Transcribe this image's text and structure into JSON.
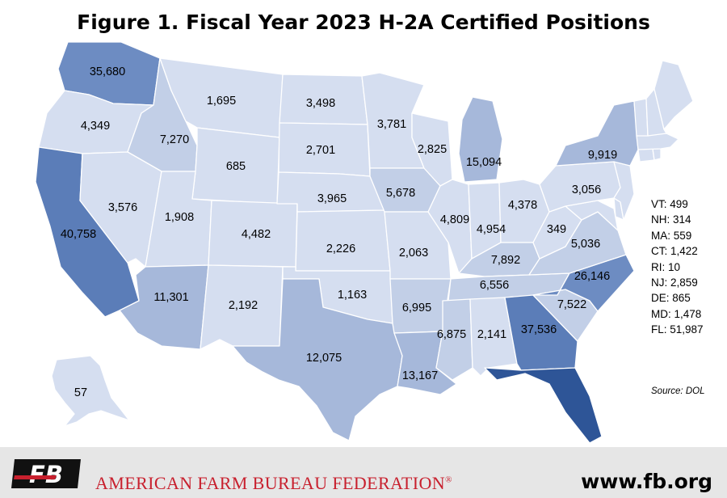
{
  "title": "Figure 1. Fiscal Year 2023 H-2A Certified Positions",
  "colors": {
    "lightest": "#d5def0",
    "light": "#c2cfe7",
    "medium": "#a6b8da",
    "dark": "#6d8cc2",
    "darker": "#5b7db8",
    "darkest": "#2e5597",
    "border": "#ffffff"
  },
  "states": [
    {
      "id": "WA",
      "value": "35,680"
    },
    {
      "id": "OR",
      "value": "4,349"
    },
    {
      "id": "CA",
      "value": "40,758"
    },
    {
      "id": "ID",
      "value": "7,270"
    },
    {
      "id": "NV",
      "value": "3,576"
    },
    {
      "id": "MT",
      "value": "1,695"
    },
    {
      "id": "WY",
      "value": "685"
    },
    {
      "id": "UT",
      "value": "1,908"
    },
    {
      "id": "AZ",
      "value": "11,301"
    },
    {
      "id": "CO",
      "value": "4,482"
    },
    {
      "id": "NM",
      "value": "2,192"
    },
    {
      "id": "ND",
      "value": "3,498"
    },
    {
      "id": "SD",
      "value": "2,701"
    },
    {
      "id": "NE",
      "value": "3,965"
    },
    {
      "id": "KS",
      "value": "2,226"
    },
    {
      "id": "OK",
      "value": "1,163"
    },
    {
      "id": "TX",
      "value": "12,075"
    },
    {
      "id": "MN",
      "value": "3,781"
    },
    {
      "id": "IA",
      "value": "5,678"
    },
    {
      "id": "MO",
      "value": "2,063"
    },
    {
      "id": "AR",
      "value": "6,995"
    },
    {
      "id": "LA",
      "value": "13,167"
    },
    {
      "id": "WI",
      "value": "2,825"
    },
    {
      "id": "IL",
      "value": "4,809"
    },
    {
      "id": "MI",
      "value": "15,094"
    },
    {
      "id": "IN",
      "value": "4,954"
    },
    {
      "id": "OH",
      "value": "4,378"
    },
    {
      "id": "KY",
      "value": "7,892"
    },
    {
      "id": "TN",
      "value": "6,556"
    },
    {
      "id": "MS",
      "value": "6,875"
    },
    {
      "id": "AL",
      "value": "2,141"
    },
    {
      "id": "GA",
      "value": "37,536"
    },
    {
      "id": "SC",
      "value": "7,522"
    },
    {
      "id": "NC",
      "value": "26,146"
    },
    {
      "id": "VA",
      "value": "5,036"
    },
    {
      "id": "WV",
      "value": "349"
    },
    {
      "id": "PA",
      "value": "3,056"
    },
    {
      "id": "NY",
      "value": "9,919"
    },
    {
      "id": "AK",
      "value": "57"
    }
  ],
  "small_states": [
    {
      "label": "VT: 499"
    },
    {
      "label": "NH: 314"
    },
    {
      "label": "MA: 559"
    },
    {
      "label": "CT: 1,422"
    },
    {
      "label": "RI: 10"
    },
    {
      "label": "NJ: 2,859"
    },
    {
      "label": "DE: 865"
    },
    {
      "label": "MD: 1,478"
    },
    {
      "label": "FL: 51,987"
    }
  ],
  "source": "Source: DOL",
  "footer": {
    "org_name": "AMERICAN FARM BUREAU FEDERATION",
    "registered": "®",
    "website": "www.fb.org",
    "logo_text": "FB"
  }
}
